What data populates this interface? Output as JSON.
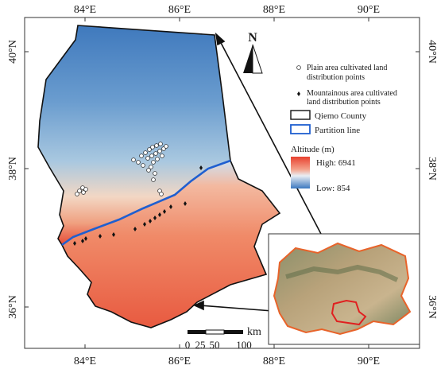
{
  "map": {
    "lon_ticks": [
      "84°E",
      "86°E",
      "88°E",
      "90°E"
    ],
    "lat_ticks": [
      "40°N",
      "38°N",
      "36°N"
    ],
    "north_arrow": {
      "label": "N",
      "icon": "north-arrow-icon"
    },
    "legend": {
      "plain_points": "Plain area cultivated land distribution points",
      "plain_points_line1": "Plain area cultivated land",
      "plain_points_line2": "distribution points",
      "mountain_points": "Mountainous area cultivated land distribution points",
      "mountain_points_line1": "Mountainous area cultivated",
      "mountain_points_line2": "land distribution points",
      "county": "Qiemo County",
      "partition": "Partition line",
      "altitude_title": "Altitude (m)",
      "altitude_high": "High: 6941",
      "altitude_low": "Low: 854"
    },
    "scale_bar": {
      "unit": "km",
      "ticks": [
        "0",
        "25",
        "50",
        "100"
      ]
    },
    "colors": {
      "plain_blue": "#4a86c6",
      "mountain_red": "#e8503a",
      "partition_line": "#1f5fd0",
      "inset_boundary": "#e02020"
    }
  }
}
